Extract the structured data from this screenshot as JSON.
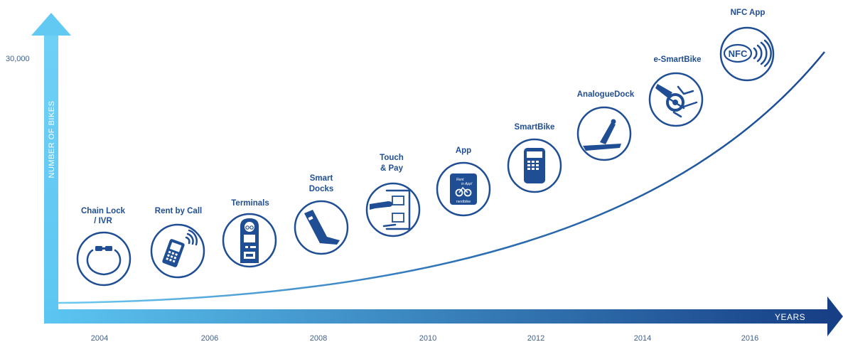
{
  "axes": {
    "y_title": "NUMBER OF BIKES",
    "y_tick": "30,000",
    "x_title": "YEARS"
  },
  "years": [
    "2004",
    "2006",
    "2008",
    "2010",
    "2012",
    "2014",
    "2016"
  ],
  "milestones": [
    {
      "lines": [
        "Chain Lock",
        "/ IVR"
      ],
      "icon": "chain-lock-icon"
    },
    {
      "lines": [
        "Rent by Call"
      ],
      "icon": "mobile-phone-icon"
    },
    {
      "lines": [
        "Terminals"
      ],
      "icon": "terminal-icon"
    },
    {
      "lines": [
        "Smart",
        "Docks"
      ],
      "icon": "smart-dock-icon"
    },
    {
      "lines": [
        "Touch",
        "& Pay"
      ],
      "icon": "touch-pay-icon"
    },
    {
      "lines": [
        "App"
      ],
      "icon": "app-icon",
      "icon_text": [
        "Rent",
        "in App!",
        "nextbike"
      ]
    },
    {
      "lines": [
        "SmartBike"
      ],
      "icon": "smartbike-icon"
    },
    {
      "lines": [
        "AnalogueDock"
      ],
      "icon": "analogue-dock-icon"
    },
    {
      "lines": [
        "e-SmartBike"
      ],
      "icon": "e-smartbike-icon"
    },
    {
      "lines": [
        "NFC App"
      ],
      "icon": "nfc-icon",
      "icon_text": [
        "NFC"
      ]
    }
  ],
  "colors": {
    "brand": "#1f4e94",
    "axis_start": "#53c2f0",
    "axis_end": "#1a4f98"
  }
}
